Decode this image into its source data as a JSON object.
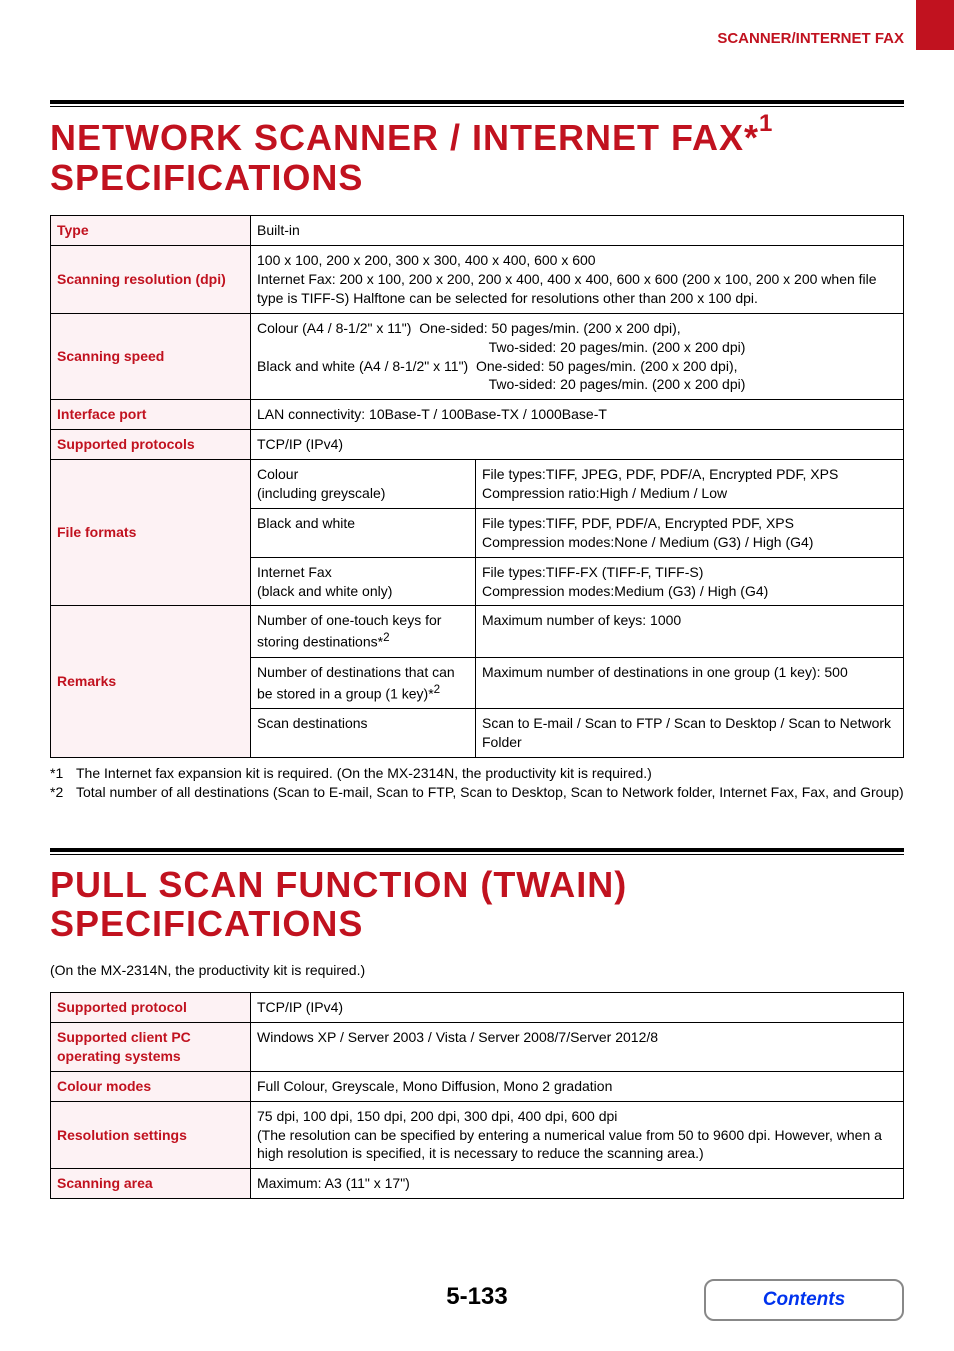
{
  "section_label": "SCANNER/INTERNET FAX",
  "heading1_html": "NETWORK SCANNER / INTERNET FAX*<sup>1</sup> SPECIFICATIONS",
  "heading2_text": "PULL SCAN FUNCTION (TWAIN) SPECIFICATIONS",
  "heading2_sub": "(On the MX-2314N, the productivity kit is required.)",
  "table1": {
    "rows": [
      {
        "label": "Type",
        "val": "Built-in"
      },
      {
        "label": "Scanning resolution (dpi)",
        "val": "100 x 100, 200 x 200, 300 x 300, 400 x 400, 600 x 600\nInternet Fax: 200 x 100, 200 x 200, 200 x 400, 400 x 400, 600 x 600 (200 x 100, 200 x 200 when file type is TIFF-S) Halftone can be selected for resolutions other than 200 x 100 dpi."
      },
      {
        "label": "Scanning speed",
        "val_html": "Colour (A4 / 8-1/2\" x 11\")&nbsp;&nbsp;One-sided: 50 pages/min. (200 x 200 dpi),<br><span class='center-block' style='display:block;text-align:center;margin-left:80px;'>Two-sided: 20 pages/min. (200 x 200 dpi)</span>Black and white (A4 / 8-1/2\" x 11\")&nbsp;&nbsp;One-sided: 50 pages/min. (200 x 200 dpi),<br><span class='center-block' style='display:block;text-align:center;margin-left:80px;'>Two-sided: 20 pages/min. (200 x 200 dpi)</span>"
      },
      {
        "label": "Interface port",
        "val": "LAN connectivity: 10Base-T / 100Base-TX / 1000Base-T"
      },
      {
        "label": "Supported protocols",
        "val": "TCP/IP (IPv4)"
      },
      {
        "label": "File formats",
        "rowspan": 3,
        "sub_rows": [
          {
            "left": "Colour\n(including greyscale)",
            "right": "File types:TIFF, JPEG, PDF, PDF/A, Encrypted PDF, XPS\nCompression ratio:High / Medium / Low"
          },
          {
            "left": "Black and white",
            "right": "File types:TIFF, PDF, PDF/A, Encrypted PDF, XPS\nCompression modes:None / Medium (G3) / High (G4)"
          },
          {
            "left": "Internet Fax\n(black and white only)",
            "right": "File types:TIFF-FX (TIFF-F, TIFF-S)\nCompression modes:Medium (G3) / High (G4)"
          }
        ]
      },
      {
        "label": "Remarks",
        "rowspan": 3,
        "sub_rows": [
          {
            "left_html": "Number of one-touch keys for storing destinations*<sup>2</sup>",
            "right": "Maximum number of keys: 1000"
          },
          {
            "left_html": "Number of destinations that can be stored in a group (1 key)*<sup>2</sup>",
            "right": "Maximum number of destinations in one group (1 key): 500"
          },
          {
            "left": "Scan destinations",
            "right": "Scan to E-mail / Scan to FTP / Scan to Desktop / Scan to Network Folder"
          }
        ]
      }
    ]
  },
  "footnotes": [
    {
      "tag": "*1",
      "txt": "The Internet fax expansion kit is required. (On the MX-2314N, the productivity kit is required.)"
    },
    {
      "tag": "*2",
      "txt": "Total number of all destinations (Scan to E-mail, Scan to FTP, Scan to Desktop, Scan to Network folder, Internet Fax, Fax, and Group)"
    }
  ],
  "table2": {
    "rows": [
      {
        "label": "Supported protocol",
        "val": "TCP/IP (IPv4)"
      },
      {
        "label": "Supported client PC operating systems",
        "val": "Windows XP / Server 2003 / Vista / Server 2008/7/Server 2012/8"
      },
      {
        "label": "Colour modes",
        "val": "Full Colour, Greyscale, Mono Diffusion, Mono 2 gradation"
      },
      {
        "label": "Resolution settings",
        "val": "75 dpi, 100 dpi, 150 dpi, 200 dpi, 300 dpi, 400 dpi, 600 dpi\n(The resolution can be specified by entering a numerical value from 50 to 9600 dpi. However, when a high resolution is specified, it is necessary to reduce the scanning area.)"
      },
      {
        "label": "Scanning area",
        "val": "Maximum: A3 (11\" x 17\")"
      }
    ]
  },
  "page_num": "5-133",
  "contents_label": "Contents",
  "colors": {
    "accent": "#c1121f",
    "link": "#0033ee",
    "label_bg": "#fdf2f4"
  }
}
